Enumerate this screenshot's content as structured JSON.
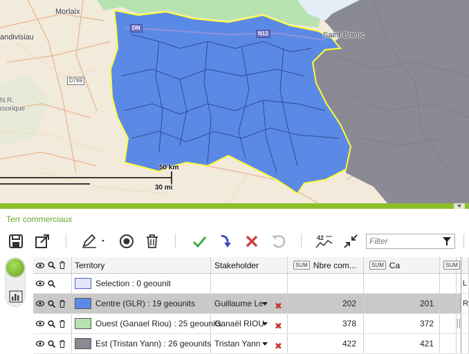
{
  "map": {
    "labels": {
      "morlaix": "Morlaix",
      "landivisiau": "andivisiau",
      "saint_brieuc": "Saint-Brieuc",
      "nr": "N.R.",
      "armorique": "morique"
    },
    "roads": {
      "d769": "D769",
      "n12": "N12",
      "n12b": "DN"
    },
    "scale": {
      "km": "50 km",
      "mi": "30 mi"
    },
    "colors": {
      "centre": "#5b8ae6",
      "ouest": "#b7e3b0",
      "est": "#8a8a94",
      "border": "#ffff33"
    }
  },
  "panel": {
    "title": "Terr commerciaux",
    "filter_placeholder": "Filter",
    "toolbar_icons": [
      "save-icon",
      "export-icon",
      "edit-icon",
      "target-icon",
      "trash-icon",
      "check-icon",
      "redo-icon",
      "cancel-icon",
      "refresh-icon",
      "distance-icon",
      "collapse-icon",
      "filter-icon"
    ],
    "distance_badge": "42"
  },
  "table": {
    "headers": {
      "territory": "Territory",
      "stakeholder": "Stakeholder",
      "sum": "SUM",
      "nbre": "Nbre com...",
      "ca": "Ca",
      "more_sum": "SUM"
    },
    "rows": [
      {
        "label": "Selection : 0 geounit",
        "color": "#e4e6f7",
        "stakeholder": "",
        "nbre": "",
        "ca": "",
        "right": "L"
      },
      {
        "label": "Centre (GLR) : 19 geounits",
        "color": "#5b8ae6",
        "stakeholder": "Guillaume Le",
        "nbre": "202",
        "ca": "201",
        "right": "R"
      },
      {
        "label": "Ouest (Ganael Riou) : 25 geounits",
        "color": "#b7e3b0",
        "stakeholder": "Ganaël RIOU",
        "nbre": "378",
        "ca": "372",
        "right": ""
      },
      {
        "label": "Est (Tristan Yann) : 26 geounits",
        "color": "#8a8a94",
        "stakeholder": "Tristan Yann",
        "nbre": "422",
        "ca": "421",
        "right": ""
      }
    ]
  }
}
